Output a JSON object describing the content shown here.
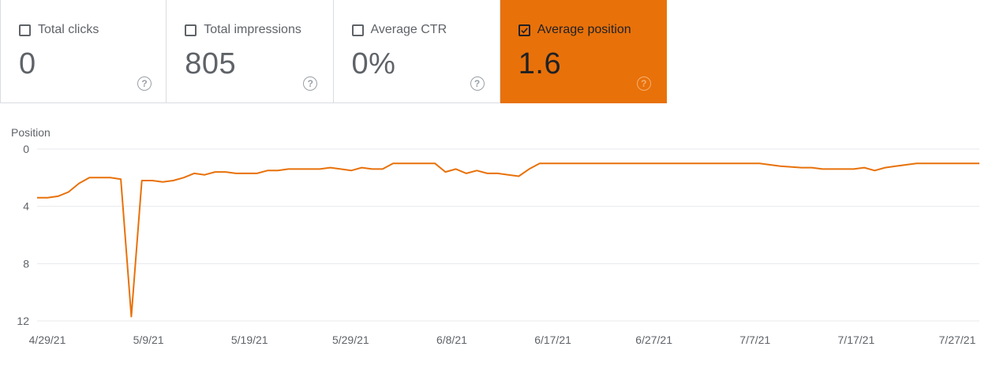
{
  "metrics": [
    {
      "label": "Total clicks",
      "value": "0",
      "checked": false,
      "help": "?"
    },
    {
      "label": "Total impressions",
      "value": "805",
      "checked": false,
      "help": "?"
    },
    {
      "label": "Average CTR",
      "value": "0%",
      "checked": false,
      "help": "?"
    },
    {
      "label": "Average position",
      "value": "1.6",
      "checked": true,
      "help": "?"
    }
  ],
  "colors": {
    "accent": "#e8710a",
    "gridline": "#e8eaed",
    "text": "#5f6368",
    "active_text": "#202124"
  },
  "chart_data": {
    "type": "line",
    "ylabel": "Position",
    "y_inverted": true,
    "ylim": [
      0,
      12
    ],
    "yticks": [
      "0",
      "4",
      "8",
      "12"
    ],
    "ytick_values": [
      0,
      4,
      8,
      12
    ],
    "xticks": [
      "4/29/21",
      "5/9/21",
      "5/19/21",
      "5/29/21",
      "6/8/21",
      "6/17/21",
      "6/27/21",
      "7/7/21",
      "7/17/21",
      "7/27/21"
    ],
    "xlim": [
      "2021-04-29",
      "2021-07-28"
    ],
    "grid": true,
    "series": [
      {
        "color": "#e8710a",
        "x": [
          "2021-04-29",
          "2021-04-30",
          "2021-05-01",
          "2021-05-02",
          "2021-05-03",
          "2021-05-04",
          "2021-05-05",
          "2021-05-06",
          "2021-05-07",
          "2021-05-08",
          "2021-05-09",
          "2021-05-10",
          "2021-05-11",
          "2021-05-12",
          "2021-05-13",
          "2021-05-14",
          "2021-05-15",
          "2021-05-16",
          "2021-05-17",
          "2021-05-18",
          "2021-05-19",
          "2021-05-20",
          "2021-05-21",
          "2021-05-22",
          "2021-05-23",
          "2021-05-24",
          "2021-05-25",
          "2021-05-26",
          "2021-05-27",
          "2021-05-28",
          "2021-05-29",
          "2021-05-30",
          "2021-05-31",
          "2021-06-01",
          "2021-06-02",
          "2021-06-03",
          "2021-06-04",
          "2021-06-05",
          "2021-06-06",
          "2021-06-07",
          "2021-06-08",
          "2021-06-09",
          "2021-06-10",
          "2021-06-11",
          "2021-06-12",
          "2021-06-13",
          "2021-06-14",
          "2021-06-15",
          "2021-06-16",
          "2021-06-17",
          "2021-06-27",
          "2021-07-07",
          "2021-07-09",
          "2021-07-11",
          "2021-07-12",
          "2021-07-13",
          "2021-07-14",
          "2021-07-15",
          "2021-07-16",
          "2021-07-17",
          "2021-07-18",
          "2021-07-19",
          "2021-07-20",
          "2021-07-21",
          "2021-07-22",
          "2021-07-23",
          "2021-07-24",
          "2021-07-25",
          "2021-07-27",
          "2021-07-28"
        ],
        "y": [
          3.4,
          3.4,
          3.3,
          3.0,
          2.4,
          2.0,
          2.0,
          2.0,
          2.1,
          11.7,
          2.2,
          2.2,
          2.3,
          2.2,
          2.0,
          1.7,
          1.8,
          1.6,
          1.6,
          1.7,
          1.7,
          1.7,
          1.5,
          1.5,
          1.4,
          1.4,
          1.4,
          1.4,
          1.3,
          1.4,
          1.5,
          1.3,
          1.4,
          1.4,
          1.0,
          1.0,
          1.0,
          1.0,
          1.0,
          1.6,
          1.4,
          1.7,
          1.5,
          1.7,
          1.7,
          1.8,
          1.9,
          1.4,
          1.0,
          1.0,
          1.0,
          1.0,
          1.2,
          1.3,
          1.3,
          1.4,
          1.4,
          1.4,
          1.4,
          1.3,
          1.5,
          1.3,
          1.2,
          1.1,
          1.0,
          1.0,
          1.0,
          1.0,
          1.0,
          1.0
        ]
      }
    ]
  }
}
